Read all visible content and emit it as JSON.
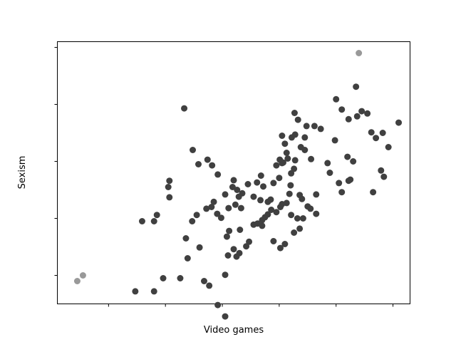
{
  "chart_data": {
    "type": "scatter",
    "title": "",
    "xlabel": "Video games",
    "ylabel": "Sexism",
    "xlim": [
      -0.9,
      5.3
    ],
    "ylim": [
      -0.5,
      4.1
    ],
    "xticks": [
      0,
      1,
      2,
      3,
      4,
      5
    ],
    "yticks": [
      0,
      1,
      2,
      3,
      4
    ],
    "show_tick_labels": false,
    "grid": false,
    "colors": {
      "points": "#404040",
      "highlighted": "#999999",
      "frame": "#000000",
      "background": "#ffffff"
    },
    "series": [
      {
        "color": "#404040",
        "points": [
          [
            0.96,
            -0.05
          ],
          [
            1.26,
            -0.05
          ],
          [
            1.39,
            0.3
          ],
          [
            1.68,
            -0.1
          ],
          [
            1.77,
            -0.18
          ],
          [
            1.6,
            0.49
          ],
          [
            1.92,
            -0.52
          ],
          [
            2.05,
            -0.72
          ],
          [
            2.1,
            0.35
          ],
          [
            2.05,
            0.01
          ],
          [
            2.25,
            0.33
          ],
          [
            2.2,
            0.46
          ],
          [
            2.3,
            0.39
          ],
          [
            2.12,
            0.78
          ],
          [
            2.31,
            0.8
          ],
          [
            2.08,
            0.68
          ],
          [
            2.23,
            1.24
          ],
          [
            2.33,
            1.18
          ],
          [
            2.26,
            1.5
          ],
          [
            2.29,
            1.38
          ],
          [
            2.42,
            0.51
          ],
          [
            2.47,
            0.59
          ],
          [
            2.55,
            0.89
          ],
          [
            2.62,
            0.91
          ],
          [
            2.7,
            0.87
          ],
          [
            2.75,
            1.02
          ],
          [
            2.8,
            1.07
          ],
          [
            2.85,
            1.33
          ],
          [
            2.72,
            1.56
          ],
          [
            2.61,
            1.63
          ],
          [
            2.68,
            1.75
          ],
          [
            2.9,
            1.62
          ],
          [
            2.95,
            1.93
          ],
          [
            3.0,
            1.71
          ],
          [
            3.07,
            1.98
          ],
          [
            3.05,
            1.97
          ],
          [
            3.01,
            2.03
          ],
          [
            3.1,
            2.31
          ],
          [
            3.13,
            2.15
          ],
          [
            3.15,
            2.05
          ],
          [
            3.05,
            2.45
          ],
          [
            3.22,
            2.42
          ],
          [
            3.28,
            2.47
          ],
          [
            3.27,
            2.85
          ],
          [
            3.33,
            2.73
          ],
          [
            3.48,
            2.62
          ],
          [
            3.45,
            2.42
          ],
          [
            3.56,
            2.04
          ],
          [
            3.62,
            2.62
          ],
          [
            3.73,
            2.57
          ],
          [
            3.85,
            1.97
          ],
          [
            3.98,
            2.37
          ],
          [
            4.05,
            1.62
          ],
          [
            4.1,
            1.46
          ],
          [
            4.25,
            1.68
          ],
          [
            4.3,
            2.0
          ],
          [
            4.37,
            2.79
          ],
          [
            4.45,
            2.88
          ],
          [
            4.35,
            3.31
          ],
          [
            4.1,
            2.91
          ],
          [
            4.22,
            2.74
          ],
          [
            4.55,
            2.84
          ],
          [
            4.7,
            2.41
          ],
          [
            4.92,
            2.25
          ],
          [
            4.84,
            1.73
          ],
          [
            3.45,
            2.2
          ],
          [
            3.28,
            2.02
          ],
          [
            3.26,
            1.87
          ],
          [
            3.21,
            1.79
          ],
          [
            3.2,
            1.58
          ],
          [
            3.18,
            1.43
          ],
          [
            3.13,
            1.27
          ],
          [
            3.05,
            1.25
          ],
          [
            3.02,
            1.2
          ],
          [
            3.36,
            1.41
          ],
          [
            3.4,
            1.34
          ],
          [
            3.5,
            1.21
          ],
          [
            3.55,
            1.17
          ],
          [
            3.65,
            1.08
          ],
          [
            3.42,
            1.0
          ],
          [
            3.36,
            0.82
          ],
          [
            3.26,
            0.75
          ],
          [
            3.1,
            0.55
          ],
          [
            3.02,
            0.48
          ],
          [
            2.9,
            0.6
          ],
          [
            2.7,
            0.97
          ],
          [
            2.45,
            1.6
          ],
          [
            2.35,
            1.44
          ],
          [
            2.2,
            1.67
          ],
          [
            2.18,
            1.55
          ],
          [
            2.11,
            1.18
          ],
          [
            2.05,
            1.42
          ],
          [
            1.98,
            1.01
          ],
          [
            1.91,
            1.08
          ],
          [
            1.81,
            1.2
          ],
          [
            1.72,
            1.17
          ],
          [
            1.55,
            1.06
          ],
          [
            1.47,
            0.95
          ],
          [
            0.8,
            0.95
          ],
          [
            0.85,
            1.06
          ],
          [
            0.59,
            0.95
          ],
          [
            0.47,
            -0.28
          ],
          [
            0.8,
            -0.28
          ],
          [
            1.36,
            0.65
          ],
          [
            1.58,
            1.95
          ],
          [
            1.82,
            1.93
          ],
          [
            1.92,
            1.77
          ],
          [
            1.74,
            2.03
          ],
          [
            1.33,
            2.93
          ],
          [
            1.48,
            2.2
          ],
          [
            2.55,
            1.38
          ],
          [
            2.67,
            1.32
          ],
          [
            2.8,
            1.29
          ],
          [
            2.86,
            1.15
          ],
          [
            2.95,
            1.11
          ],
          [
            3.21,
            1.06
          ],
          [
            3.32,
            1.0
          ],
          [
            1.05,
            1.55
          ],
          [
            1.85,
            1.29
          ],
          [
            1.07,
            1.66
          ],
          [
            1.07,
            1.37
          ],
          [
            3.65,
            1.42
          ],
          [
            3.89,
            1.8
          ],
          [
            4.2,
            2.08
          ],
          [
            4.62,
            2.51
          ],
          [
            4.0,
            3.09
          ],
          [
            4.22,
            1.66
          ],
          [
            4.79,
            1.84
          ],
          [
            4.65,
            1.46
          ],
          [
            4.82,
            2.5
          ],
          [
            5.1,
            2.68
          ],
          [
            3.38,
            2.25
          ]
        ]
      },
      {
        "color": "#999999",
        "points": [
          [
            -0.55,
            -0.1
          ],
          [
            -0.45,
            0.0
          ],
          [
            4.4,
            3.9
          ]
        ]
      }
    ]
  }
}
